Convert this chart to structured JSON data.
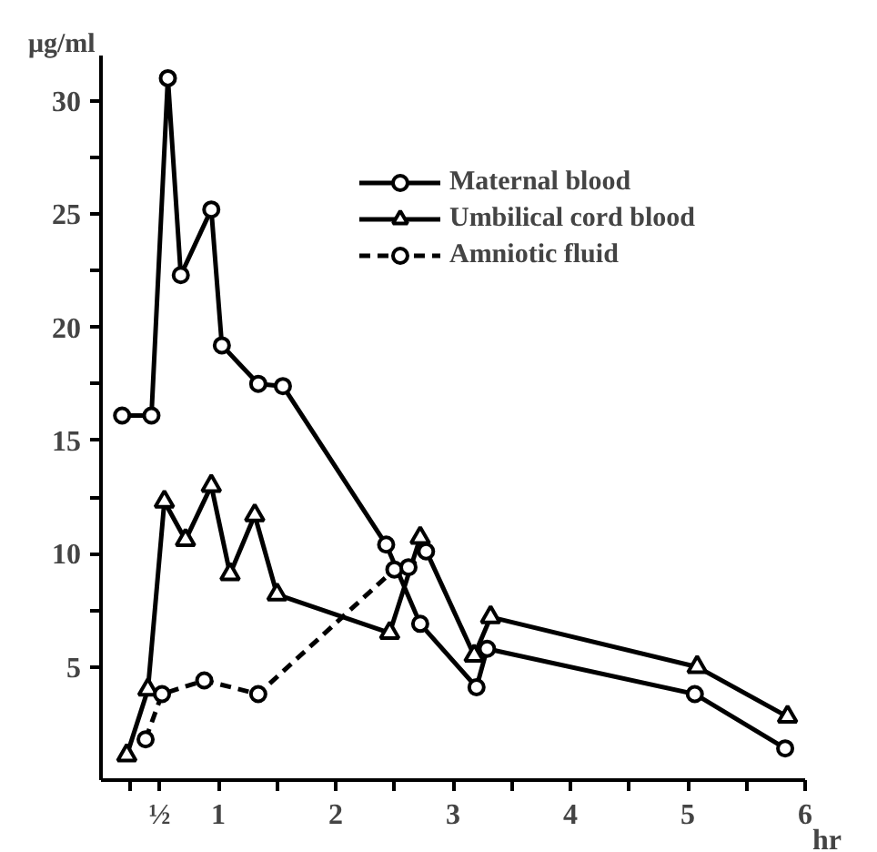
{
  "chart_data": {
    "type": "line",
    "ylabel": "μg/ml",
    "xlabel": "hr",
    "xlim": [
      0,
      6
    ],
    "ylim": [
      0,
      32
    ],
    "xticks": [
      {
        "value": 0.25,
        "label": null
      },
      {
        "value": 0.5,
        "label": "½"
      },
      1,
      {
        "value": 1.5,
        "label": null
      },
      2,
      {
        "value": 2.5,
        "label": null
      },
      3,
      {
        "value": 3.5,
        "label": null
      },
      4,
      {
        "value": 4.5,
        "label": null
      },
      5,
      {
        "value": 5.5,
        "label": null
      },
      6
    ],
    "yticks": [
      5,
      {
        "value": 7.5,
        "label": null
      },
      10,
      {
        "value": 12.5,
        "label": null
      },
      15,
      {
        "value": 17.5,
        "label": null
      },
      20,
      {
        "value": 22.5,
        "label": null
      },
      25,
      {
        "value": 27.5,
        "label": null
      },
      30
    ],
    "grid": false,
    "legend": "top right",
    "series": [
      {
        "name": "Maternal blood",
        "color": "#000000",
        "marker": "circle",
        "line_style": "solid",
        "x": [
          0.18,
          0.43,
          0.57,
          0.68,
          0.94,
          1.03,
          1.34,
          1.55,
          2.43,
          2.72,
          3.2,
          3.29,
          5.06,
          5.83
        ],
        "values": [
          16.1,
          16.1,
          31,
          22.3,
          25.2,
          19.2,
          17.5,
          17.4,
          10.4,
          6.9,
          4.1,
          5.8,
          3.8,
          1.4
        ]
      },
      {
        "name": "Umbilical cord blood",
        "color": "#000000",
        "marker": "triangle",
        "line_style": "solid",
        "x": [
          0.22,
          0.4,
          0.54,
          0.72,
          0.94,
          1.1,
          1.31,
          1.5,
          2.46,
          2.72,
          3.18,
          3.32,
          5.08,
          5.85
        ],
        "values": [
          1.1,
          4.0,
          12.3,
          10.6,
          13.0,
          9.1,
          11.7,
          8.2,
          6.5,
          10.7,
          5.5,
          7.2,
          5.0,
          2.8
        ]
      },
      {
        "name": "Amniotic fluid",
        "color": "#000000",
        "marker": "circle",
        "line_style": "dashed",
        "x": [
          0.38,
          0.52,
          0.88,
          1.34,
          2.5,
          2.62,
          2.77
        ],
        "values": [
          1.8,
          3.8,
          4.4,
          3.8,
          9.3,
          9.4,
          10.1
        ]
      }
    ]
  }
}
